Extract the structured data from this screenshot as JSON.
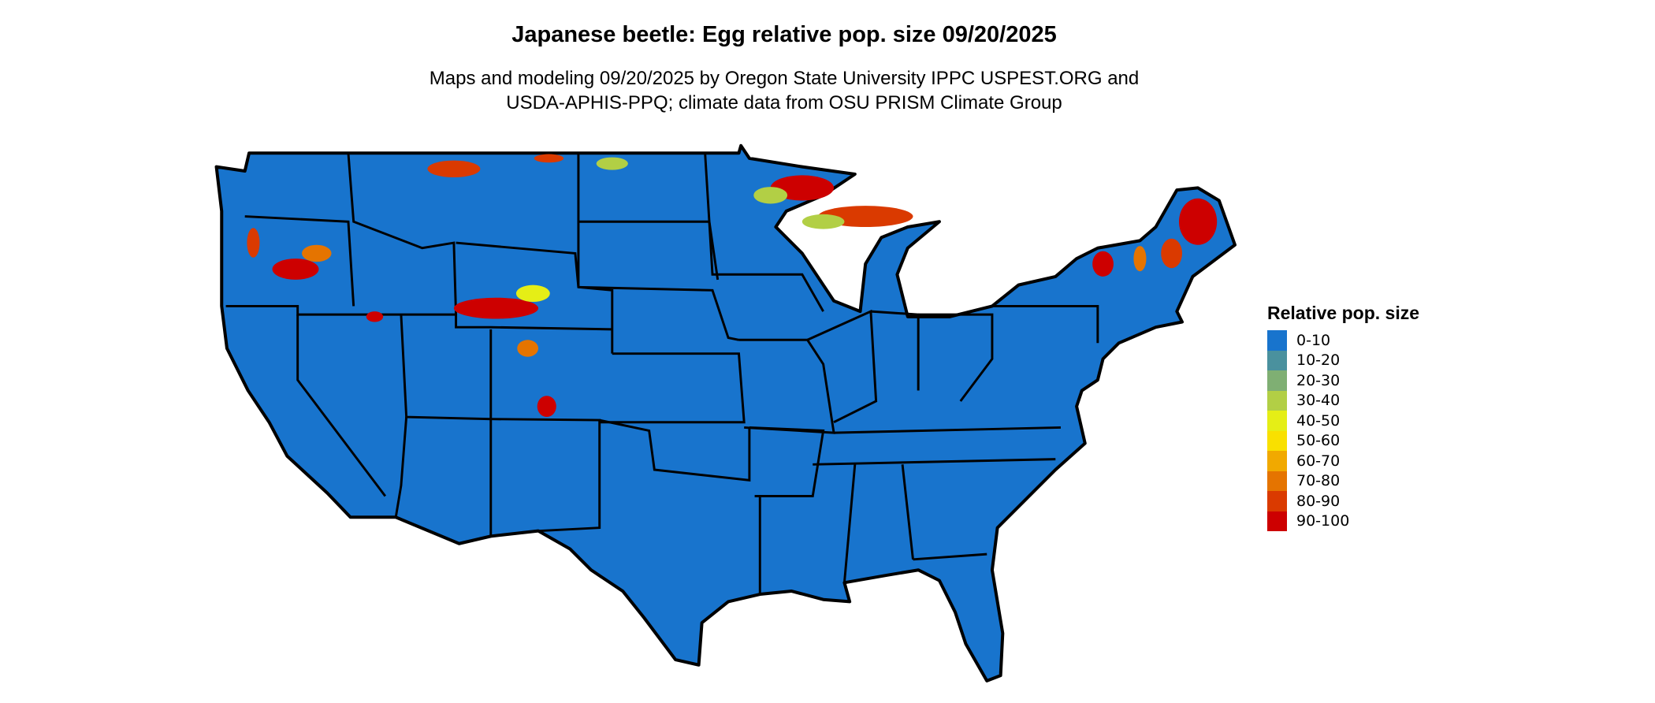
{
  "title": "Japanese beetle: Egg relative pop. size 09/20/2025",
  "subtitle_line1": "Maps and modeling 09/20/2025 by Oregon State University IPPC USPEST.ORG and",
  "subtitle_line2": "USDA-APHIS-PPQ; climate data from OSU PRISM Climate Group",
  "map": {
    "region": "Contiguous United States",
    "base_color": "#1874CD",
    "border_color": "#000000"
  },
  "legend": {
    "title": "Relative pop. size",
    "items": [
      {
        "label": "0-10",
        "color": "#1874CD"
      },
      {
        "label": "10-20",
        "color": "#4A919E"
      },
      {
        "label": "20-30",
        "color": "#7FAF73"
      },
      {
        "label": "30-40",
        "color": "#B2CF45"
      },
      {
        "label": "40-50",
        "color": "#E5EE16"
      },
      {
        "label": "50-60",
        "color": "#F9E000"
      },
      {
        "label": "60-70",
        "color": "#F1A900"
      },
      {
        "label": "70-80",
        "color": "#E57400"
      },
      {
        "label": "80-90",
        "color": "#DA3A00"
      },
      {
        "label": "90-100",
        "color": "#CD0000"
      }
    ]
  }
}
